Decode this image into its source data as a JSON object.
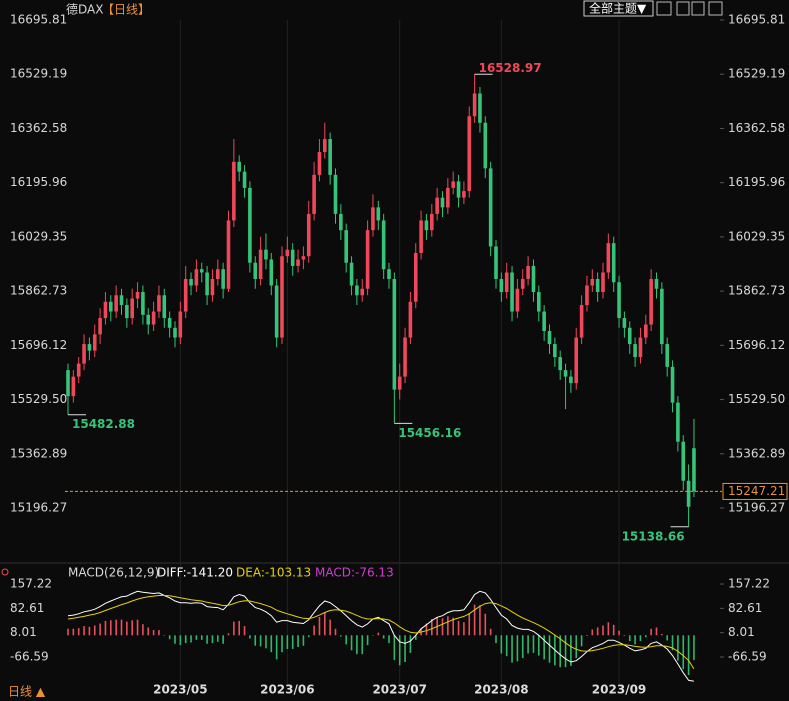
{
  "header": {
    "title": "德DAX",
    "period": "【日线】",
    "theme_button": "全部主题▼",
    "footer_period": "日线 ▲"
  },
  "chart_data": [
    {
      "type": "candlestick",
      "categories": [
        null,
        null,
        null,
        null,
        null,
        null,
        null,
        null,
        null,
        null,
        null,
        null,
        null,
        null,
        null,
        null,
        null,
        null,
        null,
        null,
        null,
        "2023/05",
        null,
        null,
        null,
        null,
        null,
        null,
        null,
        null,
        null,
        null,
        null,
        null,
        null,
        null,
        null,
        null,
        null,
        null,
        null,
        "2023/06",
        null,
        null,
        null,
        null,
        null,
        null,
        null,
        null,
        null,
        null,
        null,
        null,
        null,
        null,
        null,
        null,
        null,
        null,
        null,
        null,
        "2023/07",
        null,
        null,
        null,
        null,
        null,
        null,
        null,
        null,
        null,
        null,
        null,
        null,
        null,
        null,
        null,
        null,
        null,
        null,
        "2023/08",
        null,
        null,
        null,
        null,
        null,
        null,
        null,
        null,
        null,
        null,
        null,
        null,
        null,
        null,
        null,
        null,
        null,
        null,
        null,
        null,
        null,
        "2023/09",
        null,
        null,
        null,
        null,
        null,
        null,
        null,
        null,
        null,
        null,
        null,
        null,
        null,
        null
      ],
      "ohlc": [
        [
          15620,
          15640,
          15482.88,
          15540
        ],
        [
          15540,
          15620,
          15520,
          15600
        ],
        [
          15600,
          15660,
          15580,
          15640
        ],
        [
          15640,
          15730,
          15620,
          15700
        ],
        [
          15700,
          15720,
          15650,
          15680
        ],
        [
          15680,
          15760,
          15660,
          15730
        ],
        [
          15730,
          15810,
          15700,
          15780
        ],
        [
          15780,
          15860,
          15760,
          15830
        ],
        [
          15830,
          15850,
          15770,
          15800
        ],
        [
          15800,
          15880,
          15780,
          15850
        ],
        [
          15850,
          15870,
          15790,
          15820
        ],
        [
          15820,
          15840,
          15750,
          15780
        ],
        [
          15780,
          15870,
          15760,
          15840
        ],
        [
          15840,
          15890,
          15810,
          15860
        ],
        [
          15860,
          15880,
          15760,
          15790
        ],
        [
          15790,
          15810,
          15730,
          15760
        ],
        [
          15760,
          15830,
          15740,
          15800
        ],
        [
          15800,
          15880,
          15780,
          15850
        ],
        [
          15850,
          15870,
          15750,
          15780
        ],
        [
          15780,
          15800,
          15720,
          15750
        ],
        [
          15750,
          15770,
          15690,
          15720
        ],
        [
          15720,
          15830,
          15700,
          15800
        ],
        [
          15800,
          15940,
          15780,
          15900
        ],
        [
          15900,
          15920,
          15850,
          15880
        ],
        [
          15880,
          15960,
          15860,
          15930
        ],
        [
          15930,
          15950,
          15890,
          15920
        ],
        [
          15920,
          15940,
          15820,
          15850
        ],
        [
          15850,
          15930,
          15830,
          15900
        ],
        [
          15900,
          15960,
          15880,
          15930
        ],
        [
          15930,
          15950,
          15840,
          15870
        ],
        [
          15870,
          16110,
          15860,
          16080
        ],
        [
          16080,
          16330,
          16060,
          16260
        ],
        [
          16260,
          16280,
          16200,
          16230
        ],
        [
          16230,
          16250,
          16150,
          16180
        ],
        [
          16180,
          16200,
          15920,
          15950
        ],
        [
          15950,
          15970,
          15870,
          15900
        ],
        [
          15900,
          16030,
          15880,
          15990
        ],
        [
          15990,
          16040,
          15930,
          15960
        ],
        [
          15960,
          15980,
          15850,
          15880
        ],
        [
          15880,
          15900,
          15690,
          15720
        ],
        [
          15720,
          16000,
          15700,
          15970
        ],
        [
          15970,
          16030,
          15950,
          15990
        ],
        [
          15990,
          16010,
          15910,
          15940
        ],
        [
          15940,
          15990,
          15920,
          15960
        ],
        [
          15960,
          16000,
          15930,
          15970
        ],
        [
          15970,
          16140,
          15950,
          16100
        ],
        [
          16100,
          16260,
          16080,
          16220
        ],
        [
          16220,
          16330,
          16200,
          16290
        ],
        [
          16290,
          16380,
          16270,
          16330
        ],
        [
          16330,
          16350,
          16190,
          16220
        ],
        [
          16220,
          16240,
          16070,
          16100
        ],
        [
          16100,
          16130,
          16020,
          16050
        ],
        [
          16050,
          16070,
          15920,
          15950
        ],
        [
          15950,
          15970,
          15850,
          15880
        ],
        [
          15880,
          15900,
          15820,
          15850
        ],
        [
          15850,
          15900,
          15830,
          15870
        ],
        [
          15870,
          16080,
          15850,
          16050
        ],
        [
          16050,
          16160,
          16030,
          16120
        ],
        [
          16120,
          16140,
          16050,
          16080
        ],
        [
          16080,
          16100,
          15900,
          15930
        ],
        [
          15930,
          15950,
          15870,
          15900
        ],
        [
          15900,
          15920,
          15456.16,
          15560
        ],
        [
          15560,
          15640,
          15530,
          15600
        ],
        [
          15600,
          15750,
          15580,
          15720
        ],
        [
          15720,
          15860,
          15700,
          15830
        ],
        [
          15830,
          16010,
          15810,
          15980
        ],
        [
          15980,
          16110,
          15960,
          16080
        ],
        [
          16080,
          16100,
          16020,
          16050
        ],
        [
          16050,
          16130,
          16030,
          16100
        ],
        [
          16100,
          16180,
          16080,
          16150
        ],
        [
          16150,
          16170,
          16090,
          16120
        ],
        [
          16120,
          16210,
          16100,
          16180
        ],
        [
          16180,
          16230,
          16160,
          16200
        ],
        [
          16200,
          16220,
          16120,
          16150
        ],
        [
          16150,
          16200,
          16130,
          16170
        ],
        [
          16170,
          16430,
          16150,
          16400
        ],
        [
          16400,
          16528.97,
          16380,
          16470
        ],
        [
          16470,
          16490,
          16350,
          16380
        ],
        [
          16380,
          16400,
          16210,
          16240
        ],
        [
          16240,
          16260,
          15970,
          16000
        ],
        [
          16000,
          16020,
          15870,
          15900
        ],
        [
          15900,
          15920,
          15830,
          15860
        ],
        [
          15860,
          15950,
          15840,
          15920
        ],
        [
          15920,
          15940,
          15770,
          15800
        ],
        [
          15800,
          15900,
          15780,
          15870
        ],
        [
          15870,
          15930,
          15850,
          15900
        ],
        [
          15900,
          15970,
          15880,
          15940
        ],
        [
          15940,
          15960,
          15830,
          15860
        ],
        [
          15860,
          15880,
          15770,
          15800
        ],
        [
          15800,
          15820,
          15710,
          15740
        ],
        [
          15740,
          15760,
          15670,
          15700
        ],
        [
          15700,
          15720,
          15630,
          15660
        ],
        [
          15660,
          15680,
          15590,
          15620
        ],
        [
          15620,
          15640,
          15500,
          15600
        ],
        [
          15600,
          15620,
          15550,
          15580
        ],
        [
          15580,
          15750,
          15560,
          15720
        ],
        [
          15720,
          15850,
          15700,
          15820
        ],
        [
          15820,
          15910,
          15800,
          15880
        ],
        [
          15880,
          15930,
          15860,
          15900
        ],
        [
          15900,
          15920,
          15830,
          15860
        ],
        [
          15860,
          15950,
          15840,
          15920
        ],
        [
          15920,
          16040,
          15900,
          16010
        ],
        [
          16010,
          16030,
          15860,
          15890
        ],
        [
          15890,
          15910,
          15750,
          15780
        ],
        [
          15780,
          15800,
          15720,
          15750
        ],
        [
          15750,
          15770,
          15670,
          15700
        ],
        [
          15700,
          15720,
          15630,
          15660
        ],
        [
          15660,
          15750,
          15640,
          15720
        ],
        [
          15720,
          15790,
          15700,
          15760
        ],
        [
          15760,
          15930,
          15740,
          15900
        ],
        [
          15900,
          15920,
          15840,
          15870
        ],
        [
          15870,
          15890,
          15670,
          15700
        ],
        [
          15700,
          15720,
          15600,
          15630
        ],
        [
          15630,
          15650,
          15490,
          15520
        ],
        [
          15520,
          15540,
          15370,
          15400
        ],
        [
          15400,
          15420,
          15250,
          15280
        ],
        [
          15280,
          15330,
          15138.66,
          15200
        ],
        [
          15380,
          15470,
          15230,
          15247.21
        ]
      ],
      "up_color": "#f0485a",
      "down_color": "#35c47a",
      "last_line_color": "#e8923a",
      "ylim": [
        15036.5,
        16732.7
      ],
      "yticks": [
        15196.27,
        15362.89,
        {
          "value": 15529.5,
          "label": "15529.50"
        },
        15696.12,
        15862.73,
        16029.35,
        16195.96,
        16362.58,
        16529.19,
        16695.81
      ]
    },
    {
      "type": "macd",
      "title": "MACD(26,12,9)",
      "ylim": [
        -152.5,
        200.2
      ],
      "yticks": [
        -66.59,
        8.01,
        82.61,
        157.22
      ],
      "up_color": "#e8505e",
      "down_color": "#2fb86c",
      "series": [
        {
          "name": "DIFF:-141.20",
          "color": "#ffffff",
          "style": "line",
          "values": [
            60,
            62,
            66,
            72,
            75,
            80,
            88,
            98,
            105,
            112,
            118,
            120,
            128,
            135,
            132,
            130,
            128,
            130,
            122,
            115,
            105,
            100,
            100,
            98,
            100,
            98,
            88,
            86,
            85,
            78,
            95,
            118,
            125,
            120,
            100,
            85,
            80,
            72,
            60,
            40,
            45,
            45,
            40,
            38,
            36,
            48,
            70,
            90,
            105,
            100,
            88,
            75,
            60,
            45,
            32,
            25,
            35,
            50,
            55,
            45,
            35,
            0,
            -20,
            -25,
            -18,
            0,
            20,
            32,
            45,
            55,
            60,
            70,
            75,
            75,
            78,
            100,
            125,
            135,
            130,
            110,
            85,
            62,
            50,
            30,
            22,
            18,
            18,
            12,
            0,
            -15,
            -30,
            -45,
            -60,
            -72,
            -82,
            -78,
            -65,
            -50,
            -38,
            -32,
            -25,
            -15,
            -15,
            -22,
            -30,
            -40,
            -48,
            -45,
            -40,
            -25,
            -20,
            -30,
            -42,
            -62,
            -88,
            -115,
            -138,
            -141.2
          ]
        },
        {
          "name": "DEA:-103.13",
          "color": "#e6d200",
          "style": "line",
          "values": [
            50,
            52,
            55,
            58,
            62,
            65,
            70,
            76,
            82,
            88,
            94,
            99,
            105,
            111,
            115,
            118,
            120,
            122,
            122,
            121,
            118,
            115,
            112,
            109,
            107,
            105,
            101,
            98,
            95,
            91,
            92,
            97,
            103,
            106,
            105,
            101,
            97,
            92,
            86,
            77,
            71,
            66,
            61,
            56,
            52,
            51,
            55,
            62,
            70,
            76,
            78,
            77,
            74,
            68,
            61,
            54,
            50,
            50,
            51,
            50,
            47,
            38,
            26,
            16,
            9,
            7,
            10,
            14,
            20,
            27,
            34,
            41,
            48,
            53,
            58,
            66,
            78,
            89,
            97,
            100,
            97,
            90,
            82,
            72,
            62,
            53,
            46,
            39,
            31,
            22,
            12,
            1,
            -11,
            -23,
            -35,
            -43,
            -48,
            -49,
            -47,
            -44,
            -40,
            -35,
            -31,
            -29,
            -29,
            -31,
            -34,
            -36,
            -37,
            -35,
            -32,
            -32,
            -34,
            -39,
            -49,
            -63,
            -77,
            -103.13
          ]
        },
        {
          "name": "MACD:-76.13",
          "color": "#d03cd0",
          "style": "bar",
          "values": [
            20,
            20,
            22,
            28,
            26,
            30,
            36,
            44,
            46,
            48,
            48,
            42,
            46,
            48,
            34,
            24,
            16,
            16,
            0,
            -12,
            -26,
            -30,
            -24,
            -22,
            -14,
            -14,
            -26,
            -24,
            -20,
            -26,
            6,
            42,
            44,
            28,
            -10,
            -32,
            -34,
            -40,
            -52,
            -74,
            -52,
            -42,
            -42,
            -36,
            -32,
            -6,
            30,
            56,
            70,
            48,
            20,
            -4,
            -28,
            -46,
            -58,
            -58,
            -30,
            0,
            8,
            -10,
            -24,
            -76,
            -92,
            -82,
            -54,
            -14,
            20,
            36,
            50,
            56,
            52,
            58,
            54,
            44,
            40,
            68,
            94,
            92,
            66,
            20,
            -24,
            -56,
            -64,
            -84,
            -80,
            -70,
            -56,
            -54,
            -62,
            -74,
            -84,
            -92,
            -98,
            -98,
            -94,
            -70,
            -34,
            -2,
            18,
            24,
            30,
            40,
            32,
            14,
            -2,
            -18,
            -28,
            -18,
            -6,
            20,
            24,
            4,
            -16,
            -46,
            -78,
            -104,
            -122,
            -76.13
          ]
        }
      ]
    }
  ]
}
